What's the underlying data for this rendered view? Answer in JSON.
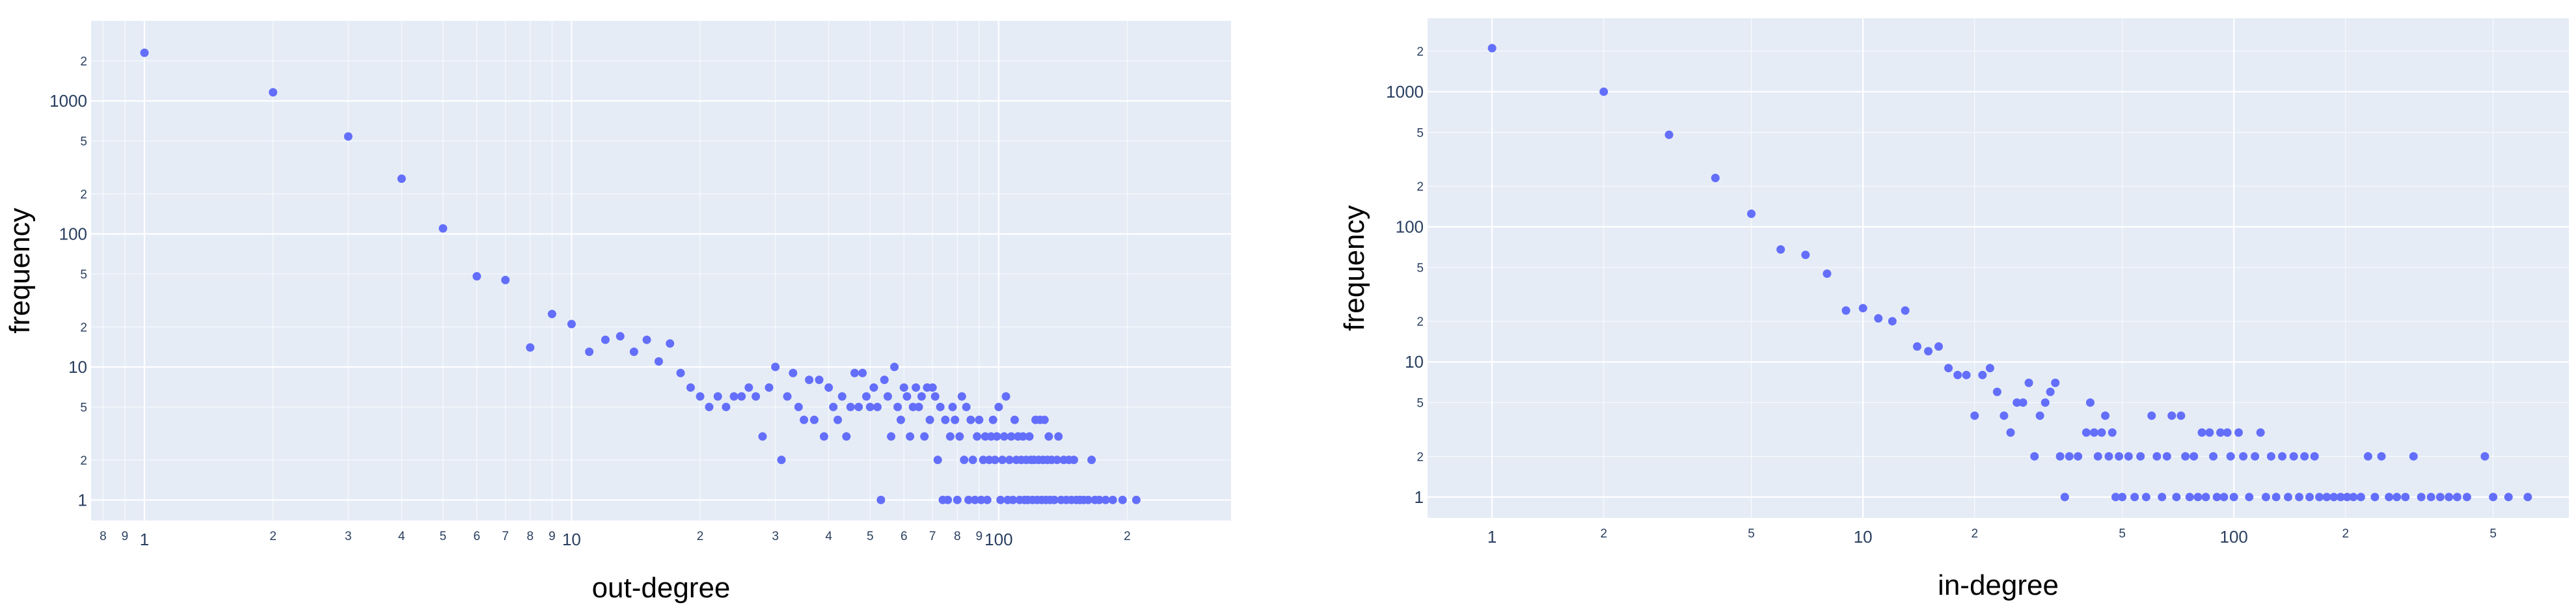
{
  "chart_data": [
    {
      "type": "scatter",
      "xlabel": "out-degree",
      "ylabel": "frequency",
      "xscale": "log",
      "yscale": "log",
      "xlim": [
        0.75,
        350
      ],
      "ylim": [
        0.7,
        4000
      ],
      "grid": true,
      "color": "#636efa",
      "x_ticks": [
        {
          "v": 0.8,
          "t": "8",
          "major": false
        },
        {
          "v": 0.9,
          "t": "9",
          "major": false
        },
        {
          "v": 1,
          "t": "1",
          "major": true
        },
        {
          "v": 2,
          "t": "2",
          "major": false
        },
        {
          "v": 3,
          "t": "3",
          "major": false
        },
        {
          "v": 4,
          "t": "4",
          "major": false
        },
        {
          "v": 5,
          "t": "5",
          "major": false
        },
        {
          "v": 6,
          "t": "6",
          "major": false
        },
        {
          "v": 7,
          "t": "7",
          "major": false
        },
        {
          "v": 8,
          "t": "8",
          "major": false
        },
        {
          "v": 9,
          "t": "9",
          "major": false
        },
        {
          "v": 10,
          "t": "10",
          "major": true
        },
        {
          "v": 20,
          "t": "2",
          "major": false
        },
        {
          "v": 30,
          "t": "3",
          "major": false
        },
        {
          "v": 40,
          "t": "4",
          "major": false
        },
        {
          "v": 50,
          "t": "5",
          "major": false
        },
        {
          "v": 60,
          "t": "6",
          "major": false
        },
        {
          "v": 70,
          "t": "7",
          "major": false
        },
        {
          "v": 80,
          "t": "8",
          "major": false
        },
        {
          "v": 90,
          "t": "9",
          "major": false
        },
        {
          "v": 100,
          "t": "100",
          "major": true
        },
        {
          "v": 200,
          "t": "2",
          "major": false
        }
      ],
      "y_ticks": [
        {
          "v": 1,
          "t": "1",
          "major": true
        },
        {
          "v": 2,
          "t": "2",
          "major": false
        },
        {
          "v": 5,
          "t": "5",
          "major": false
        },
        {
          "v": 10,
          "t": "10",
          "major": true
        },
        {
          "v": 20,
          "t": "2",
          "major": false
        },
        {
          "v": 50,
          "t": "5",
          "major": false
        },
        {
          "v": 100,
          "t": "100",
          "major": true
        },
        {
          "v": 200,
          "t": "2",
          "major": false
        },
        {
          "v": 500,
          "t": "5",
          "major": false
        },
        {
          "v": 1000,
          "t": "1000",
          "major": true
        },
        {
          "v": 2000,
          "t": "2",
          "major": false
        }
      ],
      "points": [
        [
          1,
          2300
        ],
        [
          2,
          1160
        ],
        [
          3,
          540
        ],
        [
          4,
          260
        ],
        [
          5,
          110
        ],
        [
          6,
          48
        ],
        [
          7,
          45
        ],
        [
          8,
          14
        ],
        [
          9,
          25
        ],
        [
          10,
          21
        ],
        [
          11,
          13
        ],
        [
          12,
          16
        ],
        [
          13,
          17
        ],
        [
          14,
          13
        ],
        [
          15,
          16
        ],
        [
          16,
          11
        ],
        [
          17,
          15
        ],
        [
          18,
          9
        ],
        [
          19,
          7
        ],
        [
          20,
          6
        ],
        [
          21,
          5
        ],
        [
          22,
          6
        ],
        [
          23,
          5
        ],
        [
          24,
          6
        ],
        [
          25,
          6
        ],
        [
          26,
          7
        ],
        [
          27,
          6
        ],
        [
          28,
          3
        ],
        [
          29,
          7
        ],
        [
          30,
          10
        ],
        [
          31,
          2
        ],
        [
          32,
          6
        ],
        [
          33,
          9
        ],
        [
          34,
          5
        ],
        [
          35,
          4
        ],
        [
          36,
          8
        ],
        [
          37,
          4
        ],
        [
          38,
          8
        ],
        [
          39,
          3
        ],
        [
          40,
          7
        ],
        [
          41,
          5
        ],
        [
          42,
          4
        ],
        [
          43,
          6
        ],
        [
          44,
          3
        ],
        [
          45,
          5
        ],
        [
          46,
          9
        ],
        [
          47,
          5
        ],
        [
          48,
          9
        ],
        [
          49,
          6
        ],
        [
          50,
          5
        ],
        [
          51,
          7
        ],
        [
          52,
          5
        ],
        [
          53,
          1
        ],
        [
          54,
          8
        ],
        [
          55,
          6
        ],
        [
          56,
          3
        ],
        [
          57,
          10
        ],
        [
          58,
          5
        ],
        [
          59,
          4
        ],
        [
          60,
          7
        ],
        [
          61,
          6
        ],
        [
          62,
          3
        ],
        [
          63,
          5
        ],
        [
          64,
          7
        ],
        [
          65,
          5
        ],
        [
          66,
          6
        ],
        [
          67,
          3
        ],
        [
          68,
          7
        ],
        [
          69,
          4
        ],
        [
          70,
          7
        ],
        [
          71,
          6
        ],
        [
          72,
          2
        ],
        [
          73,
          5
        ],
        [
          74,
          1
        ],
        [
          75,
          4
        ],
        [
          76,
          1
        ],
        [
          77,
          3
        ],
        [
          78,
          5
        ],
        [
          79,
          4
        ],
        [
          80,
          1
        ],
        [
          81,
          3
        ],
        [
          82,
          6
        ],
        [
          83,
          2
        ],
        [
          84,
          5
        ],
        [
          85,
          1
        ],
        [
          86,
          4
        ],
        [
          87,
          2
        ],
        [
          88,
          1
        ],
        [
          89,
          3
        ],
        [
          90,
          4
        ],
        [
          91,
          1
        ],
        [
          92,
          2
        ],
        [
          93,
          3
        ],
        [
          94,
          1
        ],
        [
          95,
          2
        ],
        [
          96,
          3
        ],
        [
          97,
          4
        ],
        [
          98,
          2
        ],
        [
          99,
          3
        ],
        [
          100,
          5
        ],
        [
          101,
          1
        ],
        [
          102,
          2
        ],
        [
          103,
          3
        ],
        [
          104,
          6
        ],
        [
          105,
          1
        ],
        [
          106,
          2
        ],
        [
          107,
          3
        ],
        [
          108,
          1
        ],
        [
          109,
          4
        ],
        [
          110,
          2
        ],
        [
          111,
          3
        ],
        [
          112,
          1
        ],
        [
          113,
          2
        ],
        [
          114,
          3
        ],
        [
          115,
          1
        ],
        [
          116,
          2
        ],
        [
          117,
          1
        ],
        [
          118,
          3
        ],
        [
          119,
          2
        ],
        [
          120,
          1
        ],
        [
          121,
          2
        ],
        [
          122,
          4
        ],
        [
          123,
          1
        ],
        [
          124,
          2
        ],
        [
          125,
          4
        ],
        [
          126,
          1
        ],
        [
          127,
          2
        ],
        [
          128,
          4
        ],
        [
          129,
          1
        ],
        [
          130,
          2
        ],
        [
          131,
          3
        ],
        [
          132,
          1
        ],
        [
          133,
          2
        ],
        [
          135,
          1
        ],
        [
          137,
          2
        ],
        [
          138,
          3
        ],
        [
          140,
          1
        ],
        [
          142,
          2
        ],
        [
          144,
          1
        ],
        [
          146,
          2
        ],
        [
          148,
          1
        ],
        [
          150,
          2
        ],
        [
          152,
          1
        ],
        [
          155,
          1
        ],
        [
          158,
          1
        ],
        [
          162,
          1
        ],
        [
          165,
          2
        ],
        [
          168,
          1
        ],
        [
          172,
          1
        ],
        [
          178,
          1
        ],
        [
          185,
          1
        ],
        [
          195,
          1
        ],
        [
          210,
          1
        ]
      ]
    },
    {
      "type": "scatter",
      "xlabel": "in-degree",
      "ylabel": "frequency",
      "xscale": "log",
      "yscale": "log",
      "xlim": [
        0.67,
        800
      ],
      "ylim": [
        0.7,
        3500
      ],
      "grid": true,
      "color": "#636efa",
      "x_ticks": [
        {
          "v": 1,
          "t": "1",
          "major": true
        },
        {
          "v": 2,
          "t": "2",
          "major": false
        },
        {
          "v": 5,
          "t": "5",
          "major": false
        },
        {
          "v": 10,
          "t": "10",
          "major": true
        },
        {
          "v": 20,
          "t": "2",
          "major": false
        },
        {
          "v": 50,
          "t": "5",
          "major": false
        },
        {
          "v": 100,
          "t": "100",
          "major": true
        },
        {
          "v": 200,
          "t": "2",
          "major": false
        },
        {
          "v": 500,
          "t": "5",
          "major": false
        }
      ],
      "y_ticks": [
        {
          "v": 1,
          "t": "1",
          "major": true
        },
        {
          "v": 2,
          "t": "2",
          "major": false
        },
        {
          "v": 5,
          "t": "5",
          "major": false
        },
        {
          "v": 10,
          "t": "10",
          "major": true
        },
        {
          "v": 20,
          "t": "2",
          "major": false
        },
        {
          "v": 50,
          "t": "5",
          "major": false
        },
        {
          "v": 100,
          "t": "100",
          "major": true
        },
        {
          "v": 200,
          "t": "2",
          "major": false
        },
        {
          "v": 500,
          "t": "5",
          "major": false
        },
        {
          "v": 1000,
          "t": "1000",
          "major": true
        },
        {
          "v": 2000,
          "t": "2",
          "major": false
        }
      ],
      "points": [
        [
          1,
          2100
        ],
        [
          2,
          1000
        ],
        [
          3,
          480
        ],
        [
          4,
          230
        ],
        [
          5,
          125
        ],
        [
          6,
          68
        ],
        [
          7,
          62
        ],
        [
          8,
          45
        ],
        [
          9,
          24
        ],
        [
          10,
          25
        ],
        [
          11,
          21
        ],
        [
          12,
          20
        ],
        [
          13,
          24
        ],
        [
          14,
          13
        ],
        [
          15,
          12
        ],
        [
          16,
          13
        ],
        [
          17,
          9
        ],
        [
          18,
          8
        ],
        [
          19,
          8
        ],
        [
          20,
          4
        ],
        [
          21,
          8
        ],
        [
          22,
          9
        ],
        [
          23,
          6
        ],
        [
          24,
          4
        ],
        [
          25,
          3
        ],
        [
          26,
          5
        ],
        [
          27,
          5
        ],
        [
          28,
          7
        ],
        [
          29,
          2
        ],
        [
          30,
          4
        ],
        [
          31,
          5
        ],
        [
          32,
          6
        ],
        [
          33,
          7
        ],
        [
          34,
          2
        ],
        [
          35,
          1
        ],
        [
          36,
          2
        ],
        [
          38,
          2
        ],
        [
          40,
          3
        ],
        [
          41,
          5
        ],
        [
          42,
          3
        ],
        [
          43,
          2
        ],
        [
          44,
          3
        ],
        [
          45,
          4
        ],
        [
          46,
          2
        ],
        [
          47,
          3
        ],
        [
          48,
          1
        ],
        [
          49,
          2
        ],
        [
          50,
          1
        ],
        [
          52,
          2
        ],
        [
          54,
          1
        ],
        [
          56,
          2
        ],
        [
          58,
          1
        ],
        [
          60,
          4
        ],
        [
          62,
          2
        ],
        [
          64,
          1
        ],
        [
          66,
          2
        ],
        [
          68,
          4
        ],
        [
          70,
          1
        ],
        [
          72,
          4
        ],
        [
          74,
          2
        ],
        [
          76,
          1
        ],
        [
          78,
          2
        ],
        [
          80,
          1
        ],
        [
          82,
          3
        ],
        [
          84,
          1
        ],
        [
          86,
          3
        ],
        [
          88,
          2
        ],
        [
          90,
          1
        ],
        [
          92,
          3
        ],
        [
          94,
          1
        ],
        [
          96,
          3
        ],
        [
          98,
          2
        ],
        [
          100,
          1
        ],
        [
          103,
          3
        ],
        [
          106,
          2
        ],
        [
          110,
          1
        ],
        [
          114,
          2
        ],
        [
          118,
          3
        ],
        [
          122,
          1
        ],
        [
          126,
          2
        ],
        [
          130,
          1
        ],
        [
          135,
          2
        ],
        [
          140,
          1
        ],
        [
          145,
          2
        ],
        [
          150,
          1
        ],
        [
          155,
          2
        ],
        [
          160,
          1
        ],
        [
          165,
          2
        ],
        [
          170,
          1
        ],
        [
          178,
          1
        ],
        [
          186,
          1
        ],
        [
          194,
          1
        ],
        [
          202,
          1
        ],
        [
          210,
          1
        ],
        [
          220,
          1
        ],
        [
          230,
          2
        ],
        [
          240,
          1
        ],
        [
          250,
          2
        ],
        [
          262,
          1
        ],
        [
          275,
          1
        ],
        [
          290,
          1
        ],
        [
          305,
          2
        ],
        [
          320,
          1
        ],
        [
          340,
          1
        ],
        [
          360,
          1
        ],
        [
          380,
          1
        ],
        [
          400,
          1
        ],
        [
          425,
          1
        ],
        [
          475,
          2
        ],
        [
          500,
          1
        ],
        [
          550,
          1
        ],
        [
          620,
          1
        ]
      ]
    }
  ]
}
